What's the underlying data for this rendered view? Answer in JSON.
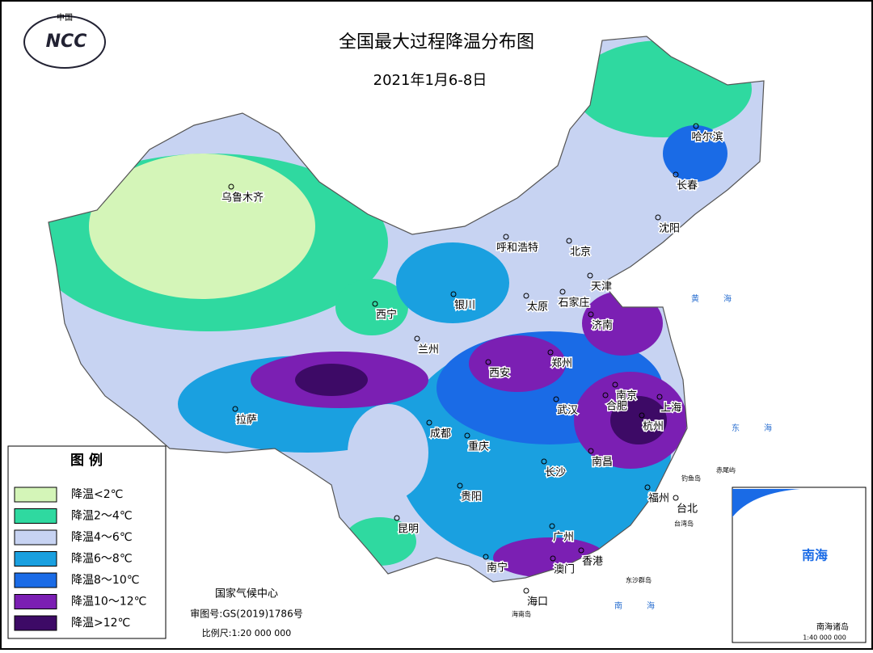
{
  "header": {
    "title": "全国最大过程降温分布图",
    "subtitle": "2021年1月6-8日",
    "logo": "NCC",
    "logo_top": "中国"
  },
  "legend": {
    "title": "图 例",
    "items": [
      {
        "label": "降温<2℃",
        "color": "#d4f5b8"
      },
      {
        "label": "降温2～4℃",
        "color": "#2fd9a0"
      },
      {
        "label": "降温4～6℃",
        "color": "#c7d3f2"
      },
      {
        "label": "降温6～8℃",
        "color": "#1aa0e0"
      },
      {
        "label": "降温8～10℃",
        "color": "#1a6be6"
      },
      {
        "label": "降温10～12℃",
        "color": "#7b1fb3"
      },
      {
        "label": "降温>12℃",
        "color": "#3d0a66"
      }
    ]
  },
  "cities": [
    "乌鲁木齐",
    "呼和浩特",
    "北京",
    "天津",
    "石家庄",
    "太原",
    "银川",
    "西宁",
    "兰州",
    "济南",
    "郑州",
    "西安",
    "南京",
    "合肥",
    "上海",
    "杭州",
    "武汉",
    "成都",
    "重庆",
    "拉萨",
    "长沙",
    "南昌",
    "贵阳",
    "福州",
    "台北",
    "昆明",
    "广州",
    "香港",
    "澳门",
    "南宁",
    "海口",
    "哈尔滨",
    "长春",
    "沈阳"
  ],
  "seas": [
    "黄海",
    "东海",
    "南海"
  ],
  "islands": [
    "钓鱼岛",
    "赤尾屿",
    "台湾岛",
    "海南岛",
    "东沙群岛"
  ],
  "footer": {
    "agency": "国家气候中心",
    "approval": "审图号:GS(2019)1786号",
    "scale": "比例尺:1:20 000 000"
  },
  "inset": {
    "label": "南海",
    "caption": "南海诸岛",
    "scale": "1:40 000 000"
  }
}
